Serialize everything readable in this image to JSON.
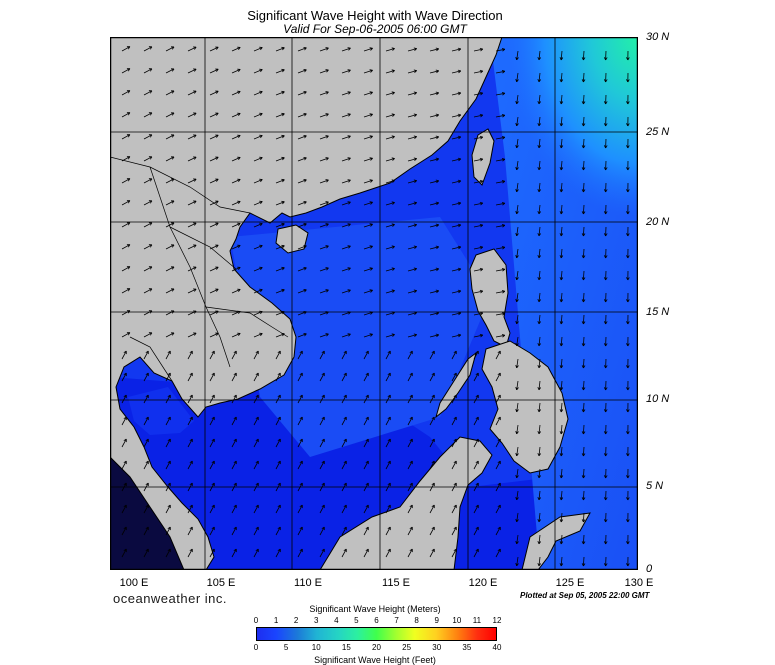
{
  "header": {
    "title": "Significant Wave Height with Wave Direction",
    "subtitle": "Valid For Sep-06-2005 06:00 GMT"
  },
  "map": {
    "lat_labels": [
      "30 N",
      "25 N",
      "20 N",
      "15 N",
      "10 N",
      "5 N",
      "0"
    ],
    "lon_labels": [
      "100 E",
      "105 E",
      "110 E",
      "115 E",
      "120 E",
      "125 E",
      "130 E"
    ],
    "colors": {
      "land": "#c0c0c0",
      "sea_low": "#0a1ee0",
      "sea_mid": "#1a45f0",
      "sea_high": "#2060ff",
      "swell_zone": "#1e90ff",
      "peak": "#22f0b0"
    }
  },
  "footer": {
    "brand": "oceanweather inc.",
    "plotted": "Plotted at Sep 05, 2005 22:00 GMT"
  },
  "legend": {
    "title_meters": "Significant Wave Height (Meters)",
    "title_feet": "Significant Wave Height (Feet)",
    "meter_ticks": [
      "0",
      "1",
      "2",
      "3",
      "4",
      "5",
      "6",
      "7",
      "8",
      "9",
      "10",
      "11",
      "12"
    ],
    "feet_ticks": [
      "0",
      "5",
      "10",
      "15",
      "20",
      "25",
      "30",
      "35",
      "40"
    ]
  }
}
